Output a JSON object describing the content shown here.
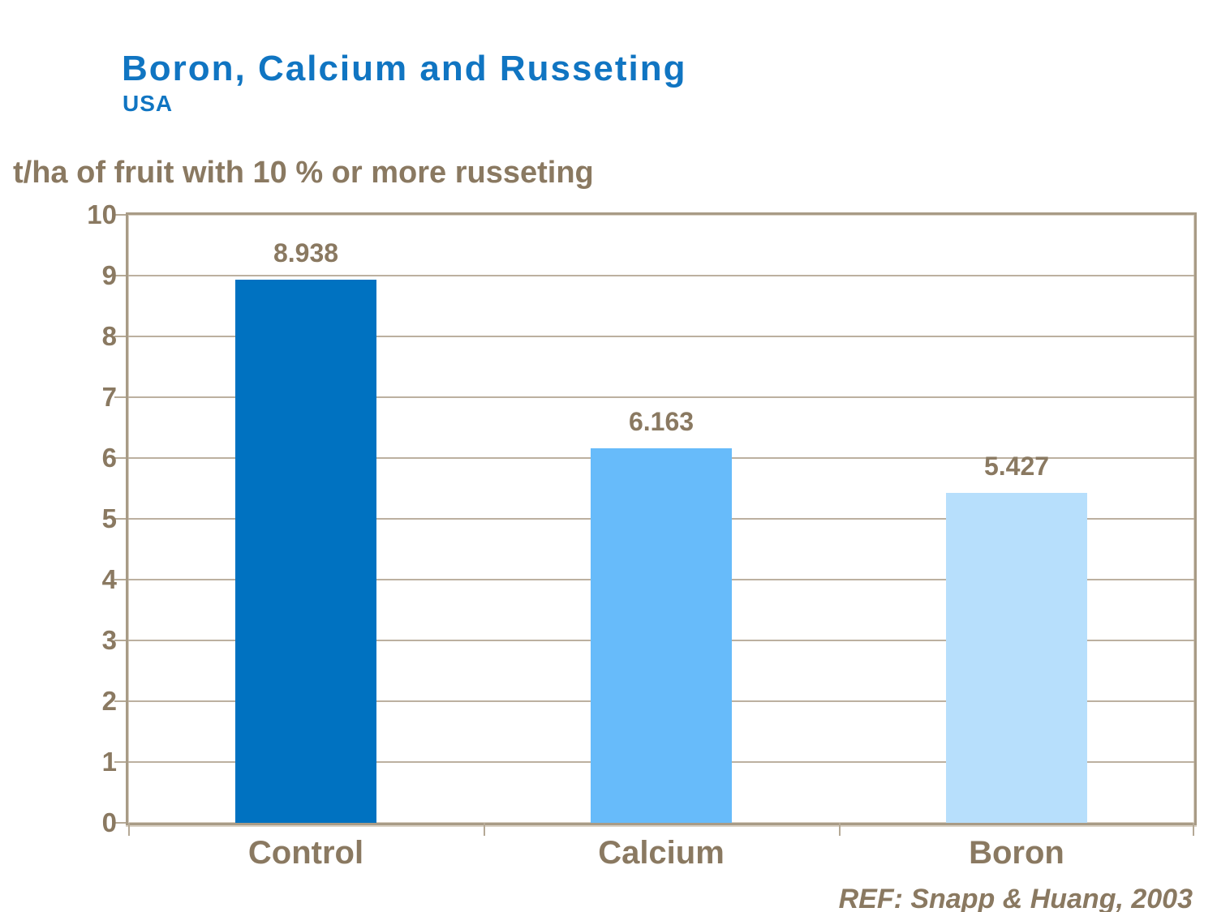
{
  "slide": {
    "title": "Boron, Calcium and Russeting",
    "subtitle": "USA",
    "reference": "REF: Snapp & Huang, 2003"
  },
  "chart_data": {
    "type": "bar",
    "title": "t/ha of fruit with 10 % or more russeting",
    "ylabel": "t/ha of fruit with 10 % or more russeting",
    "xlabel": "",
    "categories": [
      "Control",
      "Calcium",
      "Boron"
    ],
    "values": [
      8.938,
      6.163,
      5.427
    ],
    "value_labels": [
      "8.938",
      "6.163",
      "5.427"
    ],
    "bar_colors": [
      "#0072C1",
      "#67BBFA",
      "#B7DFFC"
    ],
    "ylim": [
      0,
      10
    ],
    "yticks": [
      0,
      1,
      2,
      3,
      4,
      5,
      6,
      7,
      8,
      9,
      10
    ],
    "ytick_labels": [
      "0",
      "1",
      "2",
      "3",
      "4",
      "5",
      "6",
      "7",
      "8",
      "9",
      "10"
    ],
    "grid": true,
    "legend": false,
    "plot_frame": true
  },
  "colors": {
    "title_blue": "#1075C2",
    "text_brown": "#8A7961",
    "frame": "#A89B86",
    "gridline": "#BCB0A0",
    "background": "#FFFFFF"
  }
}
